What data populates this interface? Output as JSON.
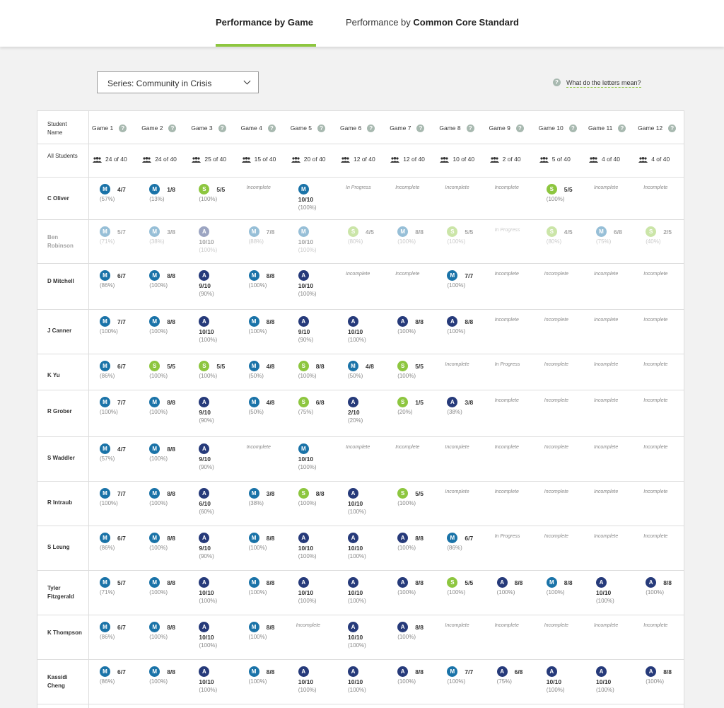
{
  "tabs": {
    "by_game": "Performance by Game",
    "by_standard_prefix": "Performance by ",
    "by_standard_bold": "Common Core Standard"
  },
  "series_select": {
    "value": "Series: Community in Crisis"
  },
  "help": {
    "icon": "?",
    "link": "What do the letters mean?"
  },
  "table": {
    "header_label": "Student Name",
    "summary_label": "All Students",
    "games": [
      "Game 1",
      "Game 2",
      "Game 3",
      "Game 4",
      "Game 5",
      "Game 6",
      "Game 7",
      "Game 8",
      "Game 9",
      "Game 10",
      "Game 11",
      "Game 12"
    ],
    "summary": [
      "24 of 40",
      "24 of 40",
      "25 of 40",
      "15 of 40",
      "20 of 40",
      "12 of 40",
      "12 of 40",
      "10 of 40",
      "2 of 40",
      "5 of 40",
      "4 of 40",
      "4 of 40"
    ],
    "colors": {
      "mastery": "#1a73a8",
      "advanced": "#263a7a",
      "success": "#8dc63f",
      "accent": "#8dc63f"
    },
    "rows": [
      {
        "name": "C Oliver",
        "cells": [
          {
            "b": "M",
            "s": "4/7",
            "p": "(57%)"
          },
          {
            "b": "M",
            "s": "1/8",
            "p": "(13%)"
          },
          {
            "b": "S",
            "s": "5/5",
            "p": "(100%)"
          },
          {
            "st": "Incomplete"
          },
          {
            "b": "M",
            "s": "10/10",
            "p": "(100%)",
            "w": 1
          },
          {
            "st": "In Progress"
          },
          {
            "st": "Incomplete"
          },
          {
            "st": "Incomplete"
          },
          {
            "st": "Incomplete"
          },
          {
            "b": "S",
            "s": "5/5",
            "p": "(100%)"
          },
          {
            "st": "Incomplete"
          },
          {
            "st": "Incomplete"
          }
        ]
      },
      {
        "name": "Ben Robinson",
        "ghost": true,
        "cells": [
          {
            "b": "M",
            "s": "5/7",
            "p": "(71%)"
          },
          {
            "b": "M",
            "s": "3/8",
            "p": "(38%)"
          },
          {
            "b": "A",
            "s": "10/10",
            "p": "(100%)",
            "w": 1
          },
          {
            "b": "M",
            "s": "7/8",
            "p": "(88%)"
          },
          {
            "b": "M",
            "s": "10/10",
            "p": "(100%)",
            "w": 1
          },
          {
            "b": "S",
            "s": "4/5",
            "p": "(80%)"
          },
          {
            "b": "M",
            "s": "8/8",
            "p": "(100%)"
          },
          {
            "b": "S",
            "s": "5/5",
            "p": "(100%)"
          },
          {
            "st": "In Progress"
          },
          {
            "b": "S",
            "s": "4/5",
            "p": "(80%)"
          },
          {
            "b": "M",
            "s": "6/8",
            "p": "(75%)"
          },
          {
            "b": "S",
            "s": "2/5",
            "p": "(40%)"
          }
        ]
      },
      {
        "name": "D Mitchell",
        "cells": [
          {
            "b": "M",
            "s": "6/7",
            "p": "(86%)"
          },
          {
            "b": "M",
            "s": "8/8",
            "p": "(100%)"
          },
          {
            "b": "A",
            "s": "9/10",
            "p": "(90%)",
            "w": 1
          },
          {
            "b": "M",
            "s": "8/8",
            "p": "(100%)"
          },
          {
            "b": "A",
            "s": "10/10",
            "p": "(100%)",
            "w": 1
          },
          {
            "st": "Incomplete"
          },
          {
            "st": "Incomplete"
          },
          {
            "b": "M",
            "s": "7/7",
            "p": "(100%)"
          },
          {
            "st": "Incomplete"
          },
          {
            "st": "Incomplete"
          },
          {
            "st": "Incomplete"
          },
          {
            "st": "Incomplete"
          }
        ]
      },
      {
        "name": "J Canner",
        "cells": [
          {
            "b": "M",
            "s": "7/7",
            "p": "(100%)"
          },
          {
            "b": "M",
            "s": "8/8",
            "p": "(100%)"
          },
          {
            "b": "A",
            "s": "10/10",
            "p": "(100%)",
            "w": 1
          },
          {
            "b": "M",
            "s": "8/8",
            "p": "(100%)"
          },
          {
            "b": "A",
            "s": "9/10",
            "p": "(90%)",
            "w": 1
          },
          {
            "b": "A",
            "s": "10/10",
            "p": "(100%)",
            "w": 1
          },
          {
            "b": "A",
            "s": "8/8",
            "p": "(100%)"
          },
          {
            "b": "A",
            "s": "8/8",
            "p": "(100%)"
          },
          {
            "st": "Incomplete"
          },
          {
            "st": "Incomplete"
          },
          {
            "st": "Incomplete"
          },
          {
            "st": "Incomplete"
          }
        ]
      },
      {
        "name": "K Yu",
        "cells": [
          {
            "b": "M",
            "s": "6/7",
            "p": "(86%)"
          },
          {
            "b": "S",
            "s": "5/5",
            "p": "(100%)"
          },
          {
            "b": "S",
            "s": "5/5",
            "p": "(100%)"
          },
          {
            "b": "M",
            "s": "4/8",
            "p": "(50%)"
          },
          {
            "b": "S",
            "s": "8/8",
            "p": "(100%)"
          },
          {
            "b": "M",
            "s": "4/8",
            "p": "(50%)"
          },
          {
            "b": "S",
            "s": "5/5",
            "p": "(100%)"
          },
          {
            "st": "Incomplete"
          },
          {
            "st": "In Progress"
          },
          {
            "st": "Incomplete"
          },
          {
            "st": "Incomplete"
          },
          {
            "st": "Incomplete"
          }
        ]
      },
      {
        "name": "R Grober",
        "cells": [
          {
            "b": "M",
            "s": "7/7",
            "p": "(100%)"
          },
          {
            "b": "M",
            "s": "8/8",
            "p": "(100%)"
          },
          {
            "b": "A",
            "s": "9/10",
            "p": "(90%)",
            "w": 1
          },
          {
            "b": "M",
            "s": "4/8",
            "p": "(50%)"
          },
          {
            "b": "S",
            "s": "6/8",
            "p": "(75%)"
          },
          {
            "b": "A",
            "s": "2/10",
            "p": "(20%)",
            "w": 1
          },
          {
            "b": "S",
            "s": "1/5",
            "p": "(20%)"
          },
          {
            "b": "A",
            "s": "3/8",
            "p": "(38%)"
          },
          {
            "st": "Incomplete"
          },
          {
            "st": "Incomplete"
          },
          {
            "st": "Incomplete"
          },
          {
            "st": "Incomplete"
          }
        ]
      },
      {
        "name": "S Waddler",
        "cells": [
          {
            "b": "M",
            "s": "4/7",
            "p": "(57%)"
          },
          {
            "b": "M",
            "s": "8/8",
            "p": "(100%)"
          },
          {
            "b": "A",
            "s": "9/10",
            "p": "(90%)",
            "w": 1
          },
          {
            "st": "Incomplete"
          },
          {
            "b": "M",
            "s": "10/10",
            "p": "(100%)",
            "w": 1
          },
          {
            "st": "Incomplete"
          },
          {
            "st": "Incomplete"
          },
          {
            "st": "Incomplete"
          },
          {
            "st": "Incomplete"
          },
          {
            "st": "Incomplete"
          },
          {
            "st": "Incomplete"
          },
          {
            "st": "Incomplete"
          }
        ]
      },
      {
        "name": "R Intraub",
        "cells": [
          {
            "b": "M",
            "s": "7/7",
            "p": "(100%)"
          },
          {
            "b": "M",
            "s": "8/8",
            "p": "(100%)"
          },
          {
            "b": "A",
            "s": "6/10",
            "p": "(60%)",
            "w": 1
          },
          {
            "b": "M",
            "s": "3/8",
            "p": "(38%)"
          },
          {
            "b": "S",
            "s": "8/8",
            "p": "(100%)"
          },
          {
            "b": "A",
            "s": "10/10",
            "p": "(100%)",
            "w": 1
          },
          {
            "b": "S",
            "s": "5/5",
            "p": "(100%)"
          },
          {
            "st": "Incomplete"
          },
          {
            "st": "Incomplete"
          },
          {
            "st": "Incomplete"
          },
          {
            "st": "Incomplete"
          },
          {
            "st": "Incomplete"
          }
        ]
      },
      {
        "name": "S Leung",
        "cells": [
          {
            "b": "M",
            "s": "6/7",
            "p": "(86%)"
          },
          {
            "b": "M",
            "s": "8/8",
            "p": "(100%)"
          },
          {
            "b": "A",
            "s": "9/10",
            "p": "(90%)",
            "w": 1
          },
          {
            "b": "M",
            "s": "8/8",
            "p": "(100%)"
          },
          {
            "b": "A",
            "s": "10/10",
            "p": "(100%)",
            "w": 1
          },
          {
            "b": "A",
            "s": "10/10",
            "p": "(100%)",
            "w": 1
          },
          {
            "b": "A",
            "s": "8/8",
            "p": "(100%)"
          },
          {
            "b": "M",
            "s": "6/7",
            "p": "(86%)"
          },
          {
            "st": "In Progress"
          },
          {
            "st": "Incomplete"
          },
          {
            "st": "Incomplete"
          },
          {
            "st": "Incomplete"
          }
        ]
      },
      {
        "name": "Tyler Fitzgerald",
        "cells": [
          {
            "b": "M",
            "s": "5/7",
            "p": "(71%)"
          },
          {
            "b": "M",
            "s": "8/8",
            "p": "(100%)"
          },
          {
            "b": "A",
            "s": "10/10",
            "p": "(100%)",
            "w": 1
          },
          {
            "b": "M",
            "s": "8/8",
            "p": "(100%)"
          },
          {
            "b": "A",
            "s": "10/10",
            "p": "(100%)",
            "w": 1
          },
          {
            "b": "A",
            "s": "10/10",
            "p": "(100%)",
            "w": 1
          },
          {
            "b": "A",
            "s": "8/8",
            "p": "(100%)"
          },
          {
            "b": "S",
            "s": "5/5",
            "p": "(100%)"
          },
          {
            "b": "A",
            "s": "8/8",
            "p": "(100%)"
          },
          {
            "b": "M",
            "s": "8/8",
            "p": "(100%)"
          },
          {
            "b": "A",
            "s": "10/10",
            "p": "(100%)",
            "w": 1
          },
          {
            "b": "A",
            "s": "8/8",
            "p": "(100%)"
          }
        ]
      },
      {
        "name": "K Thompson",
        "cells": [
          {
            "b": "M",
            "s": "6/7",
            "p": "(86%)"
          },
          {
            "b": "M",
            "s": "8/8",
            "p": "(100%)"
          },
          {
            "b": "A",
            "s": "10/10",
            "p": "(100%)",
            "w": 1
          },
          {
            "b": "M",
            "s": "8/8",
            "p": "(100%)"
          },
          {
            "st": "Incomplete"
          },
          {
            "b": "A",
            "s": "10/10",
            "p": "(100%)",
            "w": 1
          },
          {
            "b": "A",
            "s": "8/8",
            "p": "(100%)"
          },
          {
            "st": "Incomplete"
          },
          {
            "st": "Incomplete"
          },
          {
            "st": "Incomplete"
          },
          {
            "st": "Incomplete"
          },
          {
            "st": "Incomplete"
          }
        ]
      },
      {
        "name": "Kassidi Cheng",
        "cells": [
          {
            "b": "M",
            "s": "6/7",
            "p": "(86%)"
          },
          {
            "b": "M",
            "s": "8/8",
            "p": "(100%)"
          },
          {
            "b": "A",
            "s": "10/10",
            "p": "(100%)",
            "w": 1
          },
          {
            "b": "M",
            "s": "8/8",
            "p": "(100%)"
          },
          {
            "b": "A",
            "s": "10/10",
            "p": "(100%)",
            "w": 1
          },
          {
            "b": "A",
            "s": "10/10",
            "p": "(100%)",
            "w": 1
          },
          {
            "b": "A",
            "s": "8/8",
            "p": "(100%)"
          },
          {
            "b": "M",
            "s": "7/7",
            "p": "(100%)"
          },
          {
            "b": "A",
            "s": "6/8",
            "p": "(75%)"
          },
          {
            "b": "A",
            "s": "10/10",
            "p": "(100%)",
            "w": 1
          },
          {
            "b": "A",
            "s": "10/10",
            "p": "(100%)",
            "w": 1
          },
          {
            "b": "A",
            "s": "8/8",
            "p": "(100%)"
          }
        ]
      }
    ]
  }
}
